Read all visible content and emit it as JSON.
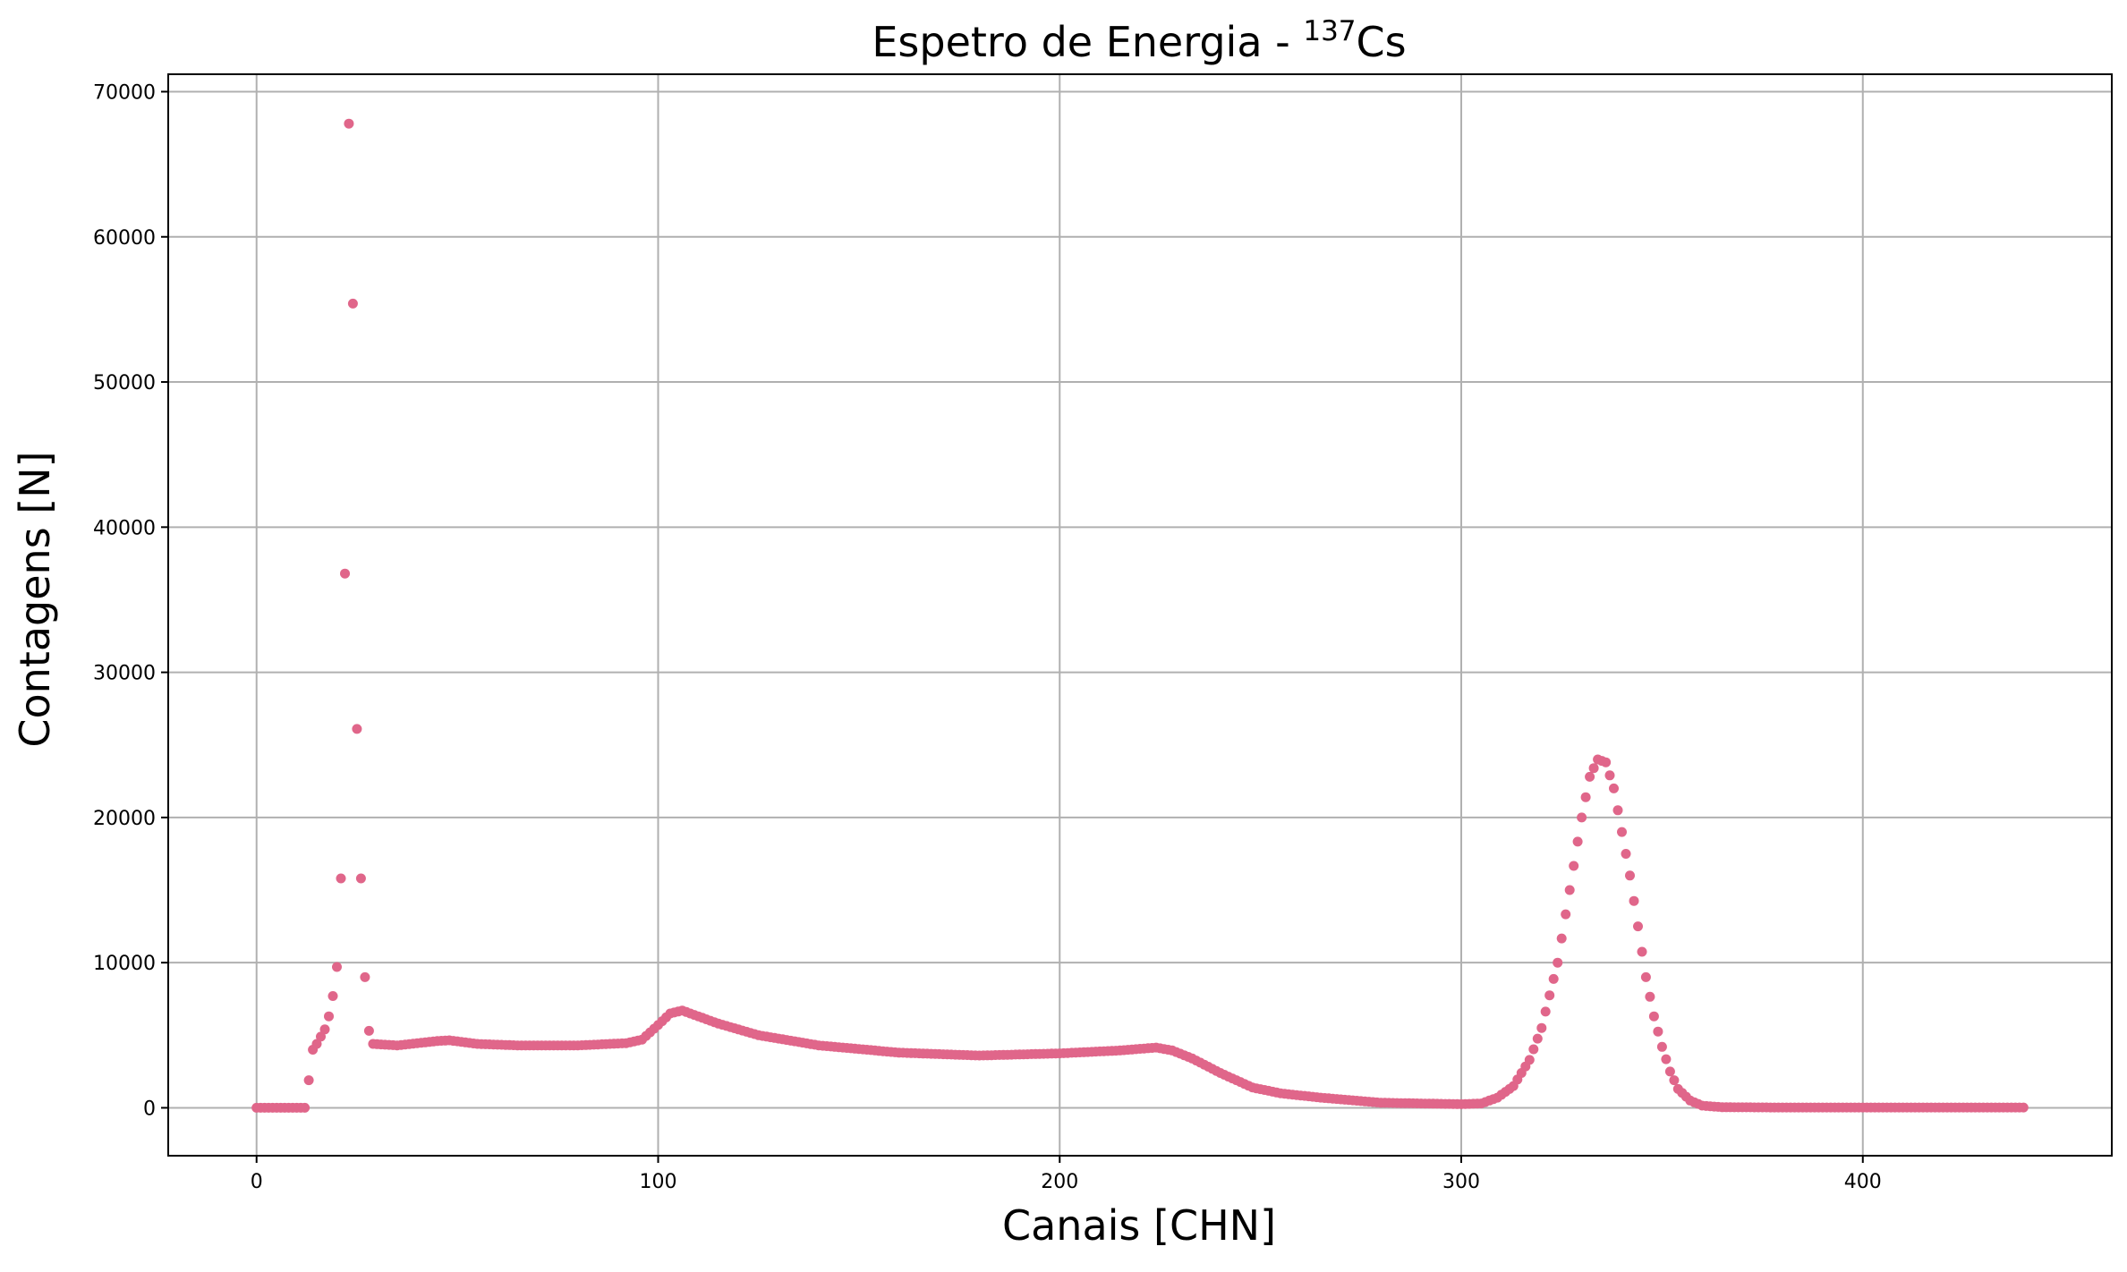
{
  "chart_data": {
    "type": "scatter",
    "title": "Espetro de Energia - ",
    "title_superscript": "137",
    "title_suffix": "Cs",
    "xlabel": "Canais [CHN]",
    "ylabel": "Contagens [N]",
    "xlim": [
      -22,
      462
    ],
    "ylim": [
      -3300,
      71200
    ],
    "xticks": [
      0,
      100,
      200,
      300,
      400
    ],
    "yticks": [
      0,
      10000,
      20000,
      30000,
      40000,
      50000,
      60000,
      70000
    ],
    "xtick_labels": [
      "0",
      "100",
      "200",
      "300",
      "400"
    ],
    "ytick_labels": [
      "0",
      "10000",
      "20000",
      "30000",
      "40000",
      "50000",
      "60000",
      "70000"
    ],
    "grid": true,
    "marker_color": "#e0668a",
    "series": [
      {
        "anchors": [
          [
            0,
            0
          ],
          [
            12,
            0
          ],
          [
            13,
            1900
          ],
          [
            14,
            4000
          ],
          [
            15,
            4400
          ],
          [
            16,
            4900
          ],
          [
            17,
            5400
          ],
          [
            18,
            6300
          ],
          [
            19,
            7700
          ],
          [
            20,
            9700
          ],
          [
            21,
            15800
          ],
          [
            22,
            36800
          ],
          [
            23,
            67800
          ],
          [
            24,
            55400
          ],
          [
            25,
            26100
          ],
          [
            26,
            15800
          ],
          [
            27,
            9000
          ],
          [
            28,
            5300
          ],
          [
            29,
            4400
          ],
          [
            35,
            4300
          ],
          [
            40,
            4450
          ],
          [
            45,
            4600
          ],
          [
            48,
            4650
          ],
          [
            55,
            4400
          ],
          [
            65,
            4300
          ],
          [
            80,
            4300
          ],
          [
            92,
            4450
          ],
          [
            96,
            4700
          ],
          [
            100,
            5700
          ],
          [
            103,
            6500
          ],
          [
            106,
            6700
          ],
          [
            110,
            6300
          ],
          [
            115,
            5800
          ],
          [
            125,
            5000
          ],
          [
            140,
            4300
          ],
          [
            160,
            3800
          ],
          [
            180,
            3600
          ],
          [
            200,
            3750
          ],
          [
            215,
            3950
          ],
          [
            224,
            4150
          ],
          [
            228,
            3950
          ],
          [
            233,
            3400
          ],
          [
            240,
            2400
          ],
          [
            248,
            1400
          ],
          [
            255,
            1000
          ],
          [
            265,
            700
          ],
          [
            280,
            350
          ],
          [
            300,
            250
          ],
          [
            305,
            300
          ],
          [
            309,
            700
          ],
          [
            313,
            1500
          ],
          [
            317,
            3300
          ],
          [
            320,
            5500
          ],
          [
            324,
            10000
          ],
          [
            327,
            15000
          ],
          [
            330,
            20000
          ],
          [
            332,
            22800
          ],
          [
            334,
            24000
          ],
          [
            336,
            23800
          ],
          [
            338,
            22000
          ],
          [
            340,
            19000
          ],
          [
            342,
            16000
          ],
          [
            344,
            12500
          ],
          [
            346,
            9000
          ],
          [
            348,
            6300
          ],
          [
            350,
            4200
          ],
          [
            352,
            2500
          ],
          [
            354,
            1300
          ],
          [
            357,
            500
          ],
          [
            360,
            150
          ],
          [
            365,
            40
          ],
          [
            380,
            20
          ],
          [
            440,
            20
          ]
        ]
      }
    ]
  }
}
